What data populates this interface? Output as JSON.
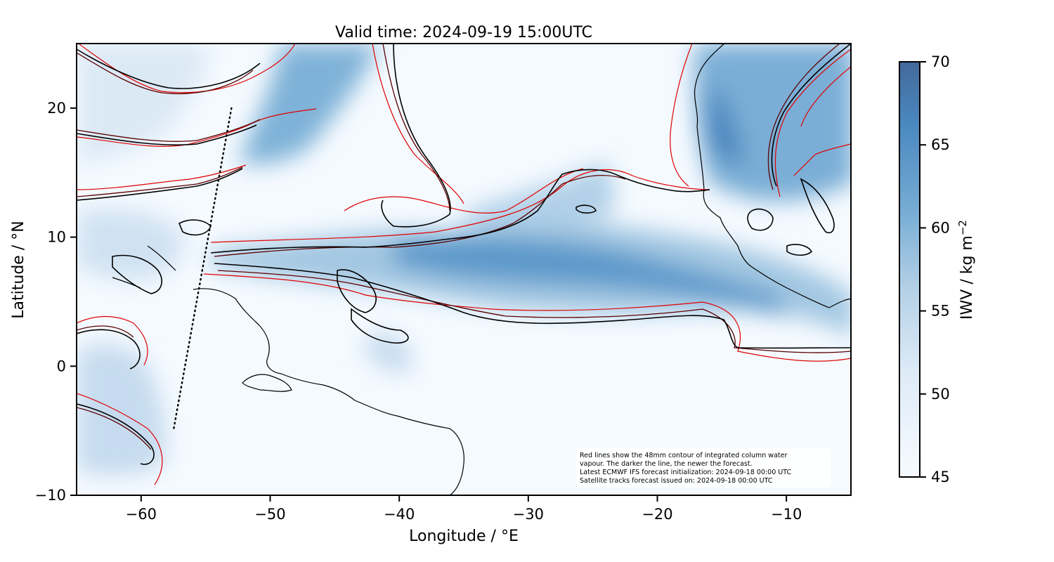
{
  "title": "Valid time: 2024-09-19 15:00UTC",
  "colors": {
    "background": "#f5faff",
    "contour_newest": "#000000",
    "contour_mid": "#5a0000",
    "contour_old": "#e00000",
    "colorbar_low": "#f7fbff",
    "colorbar_high": "#43699a"
  },
  "chart_data": {
    "type": "heatmap",
    "title": "Valid time: 2024-09-19 15:00UTC",
    "xlabel": "Longitude / °E",
    "ylabel": "Latitude / °N",
    "xlim": [
      -65,
      -5
    ],
    "ylim": [
      -10,
      25
    ],
    "x_ticks": [
      -60,
      -50,
      -40,
      -30,
      -20,
      -10
    ],
    "x_tick_labels": [
      "−60",
      "−50",
      "−40",
      "−30",
      "−20",
      "−10"
    ],
    "y_ticks": [
      -10,
      0,
      10,
      20
    ],
    "y_tick_labels": [
      "−10",
      "0",
      "10",
      "20"
    ],
    "grid": false,
    "colorbar": {
      "label": "IWV / kg m",
      "label_superscript": "−2",
      "range": [
        45,
        70
      ],
      "ticks": [
        45,
        50,
        55,
        60,
        65,
        70
      ],
      "tick_labels": [
        "45",
        "50",
        "55",
        "60",
        "65",
        "70"
      ]
    },
    "annotation": [
      "Red lines show the 48mm contour of integrated column water",
      "vapour. The darker the line, the newer the forecast.",
      "Latest ECMWF IFS forecast initialization: 2024-09-18 00:00 UTC",
      "Satellite tracks forecast issued on: 2024-09-18 00:00 UTC"
    ],
    "satellite_track": [
      [
        -53,
        20
      ],
      [
        -57.5,
        -5
      ]
    ],
    "moist_band": [
      {
        "lon": -38,
        "lat": 9.5,
        "iwv": 58
      },
      {
        "lon": -25,
        "lat": 8.5,
        "iwv": 60
      },
      {
        "lon": -15,
        "lat": 7,
        "iwv": 59
      },
      {
        "lon": -8,
        "lat": 5,
        "iwv": 58
      },
      {
        "lon": -45,
        "lat": 24,
        "iwv": 60
      },
      {
        "lon": -12,
        "lat": 18,
        "iwv": 61
      }
    ]
  }
}
